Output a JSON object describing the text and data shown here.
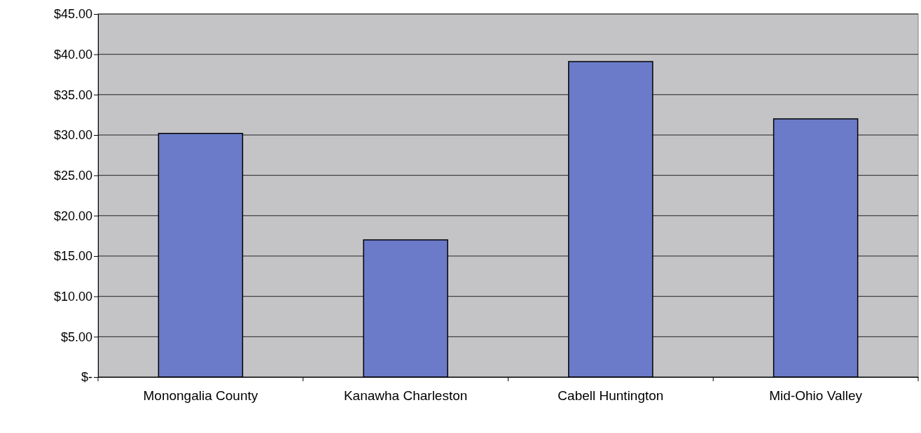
{
  "chart_data": {
    "type": "bar",
    "categories": [
      "Monongalia County",
      "Kanawha Charleston",
      "Cabell Huntington",
      "Mid-Ohio Valley"
    ],
    "values": [
      30.2,
      17,
      39.1,
      32
    ],
    "color": "#6b7bc9",
    "ylim": [
      0,
      45
    ],
    "yticks": [
      {
        "value": 0,
        "label": "$-"
      },
      {
        "value": 5,
        "label": "$5.00"
      },
      {
        "value": 10,
        "label": "$10.00"
      },
      {
        "value": 15,
        "label": "$15.00"
      },
      {
        "value": 20,
        "label": "$20.00"
      },
      {
        "value": 25,
        "label": "$25.00"
      },
      {
        "value": 30,
        "label": "$30.00"
      },
      {
        "value": 35,
        "label": "$35.00"
      },
      {
        "value": 40,
        "label": "$40.00"
      },
      {
        "value": 45,
        "label": "$45.00"
      }
    ],
    "grid": "y"
  }
}
